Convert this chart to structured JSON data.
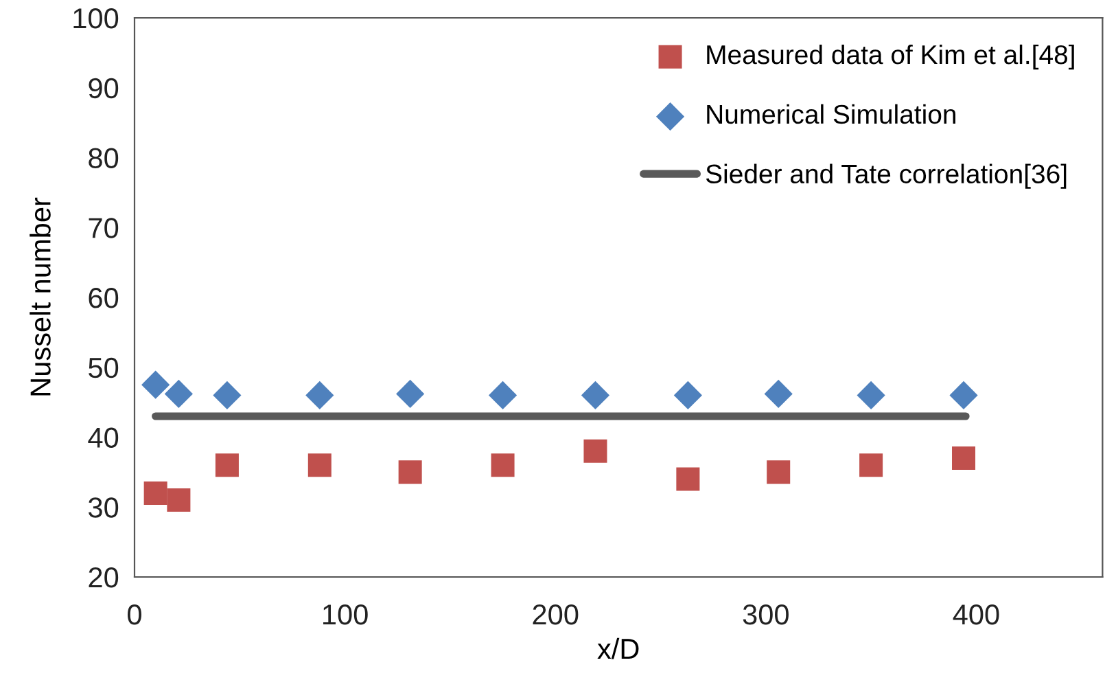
{
  "chart_data": {
    "type": "scatter",
    "xlabel": "x/D",
    "ylabel": "Nusselt number",
    "xlim": [
      0,
      460
    ],
    "xticks": [
      0,
      100,
      200,
      300,
      400
    ],
    "ylim": [
      20,
      100
    ],
    "yticks": [
      20,
      30,
      40,
      50,
      60,
      70,
      80,
      90,
      100
    ],
    "grid": false,
    "legend": "top right",
    "series": [
      {
        "name": "Measured data of Kim et al.[48]",
        "marker": "square",
        "color": "#c0504d",
        "x": [
          10,
          21,
          44,
          88,
          131,
          175,
          219,
          263,
          306,
          350,
          394
        ],
        "values": [
          32,
          31,
          36,
          36,
          35,
          36,
          38,
          34,
          35,
          36,
          37
        ]
      },
      {
        "name": "Numerical Simulation",
        "marker": "diamond",
        "color": "#4f81bd",
        "x": [
          10,
          21,
          44,
          88,
          131,
          175,
          219,
          263,
          306,
          350,
          394
        ],
        "values": [
          47.5,
          46.2,
          46,
          46,
          46.2,
          46,
          46,
          46,
          46.2,
          46,
          46
        ]
      },
      {
        "name": "Sieder and Tate correlation[36]",
        "type": "line",
        "marker": "none",
        "line_style": "solid",
        "color": "#595959",
        "x": [
          10,
          395
        ],
        "values": [
          43,
          43
        ]
      }
    ]
  }
}
